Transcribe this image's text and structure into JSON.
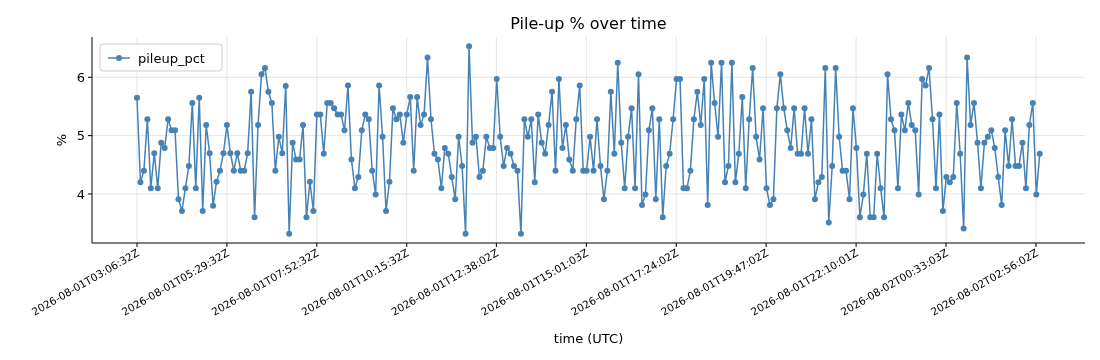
{
  "chart_data": {
    "type": "line",
    "title": "Pile-up % over time",
    "xlabel": "time (UTC)",
    "ylabel": "%",
    "x": [
      "2026-08-01T03:06:32",
      "2026-08-01T03:12:02",
      "2026-08-01T03:17:32",
      "2026-08-01T03:23:02",
      "2026-08-01T03:28:32",
      "2026-08-01T03:34:02",
      "2026-08-01T03:39:32",
      "2026-08-01T03:45:02",
      "2026-08-01T03:50:32",
      "2026-08-01T03:56:02",
      "2026-08-01T04:01:32",
      "2026-08-01T04:07:02",
      "2026-08-01T04:12:32",
      "2026-08-01T04:18:02",
      "2026-08-01T04:23:32",
      "2026-08-01T04:29:02",
      "2026-08-01T04:34:32",
      "2026-08-01T04:40:02",
      "2026-08-01T04:45:32",
      "2026-08-01T04:51:02",
      "2026-08-01T04:56:32",
      "2026-08-01T05:02:02",
      "2026-08-01T05:07:32",
      "2026-08-01T05:13:02",
      "2026-08-01T05:18:32",
      "2026-08-01T05:24:02",
      "2026-08-01T05:29:32",
      "2026-08-01T05:35:02",
      "2026-08-01T05:40:32",
      "2026-08-01T05:46:02",
      "2026-08-01T05:51:32",
      "2026-08-01T05:57:02",
      "2026-08-01T06:02:32",
      "2026-08-01T06:08:02",
      "2026-08-01T06:13:32",
      "2026-08-01T06:19:02",
      "2026-08-01T06:24:32",
      "2026-08-01T06:30:02",
      "2026-08-01T06:35:32",
      "2026-08-01T06:41:02",
      "2026-08-01T06:46:32",
      "2026-08-01T06:52:02",
      "2026-08-01T06:57:32",
      "2026-08-01T07:03:02",
      "2026-08-01T07:08:32",
      "2026-08-01T07:14:02",
      "2026-08-01T07:19:32",
      "2026-08-01T07:25:02",
      "2026-08-01T07:30:32",
      "2026-08-01T07:36:02",
      "2026-08-01T07:41:32",
      "2026-08-01T07:47:02",
      "2026-08-01T07:52:32",
      "2026-08-01T07:58:02",
      "2026-08-01T08:03:32",
      "2026-08-01T08:09:02",
      "2026-08-01T08:14:32",
      "2026-08-01T08:20:02",
      "2026-08-01T08:25:32",
      "2026-08-01T08:31:02",
      "2026-08-01T08:36:32",
      "2026-08-01T08:42:02",
      "2026-08-01T08:47:32",
      "2026-08-01T08:53:02",
      "2026-08-01T08:58:32",
      "2026-08-01T09:04:02",
      "2026-08-01T09:09:32",
      "2026-08-01T09:15:02",
      "2026-08-01T09:20:32",
      "2026-08-01T09:26:02",
      "2026-08-01T09:31:32",
      "2026-08-01T09:37:02",
      "2026-08-01T09:42:32",
      "2026-08-01T09:48:02",
      "2026-08-01T09:53:32",
      "2026-08-01T09:59:02",
      "2026-08-01T10:04:32",
      "2026-08-01T10:10:02",
      "2026-08-01T10:15:32",
      "2026-08-01T10:21:02",
      "2026-08-01T10:26:32",
      "2026-08-01T10:32:02",
      "2026-08-01T10:37:32",
      "2026-08-01T10:43:02",
      "2026-08-01T10:48:32",
      "2026-08-01T10:54:02",
      "2026-08-01T10:59:32",
      "2026-08-01T11:05:02",
      "2026-08-01T11:10:32",
      "2026-08-01T11:16:02",
      "2026-08-01T11:21:32",
      "2026-08-01T11:27:02",
      "2026-08-01T11:32:32",
      "2026-08-01T11:38:02",
      "2026-08-01T11:43:32",
      "2026-08-01T11:49:02",
      "2026-08-01T11:54:32",
      "2026-08-01T12:00:02",
      "2026-08-01T12:05:32",
      "2026-08-01T12:11:02",
      "2026-08-01T12:16:32",
      "2026-08-01T12:22:02",
      "2026-08-01T12:27:32",
      "2026-08-01T12:33:02",
      "2026-08-01T12:38:32",
      "2026-08-01T12:44:02",
      "2026-08-01T12:49:32",
      "2026-08-01T12:55:02",
      "2026-08-01T13:00:32",
      "2026-08-01T13:06:02",
      "2026-08-01T13:11:32",
      "2026-08-01T13:17:02",
      "2026-08-01T13:22:32",
      "2026-08-01T13:28:02",
      "2026-08-01T13:33:32",
      "2026-08-01T13:39:02",
      "2026-08-01T13:44:32",
      "2026-08-01T13:50:02",
      "2026-08-01T13:55:32",
      "2026-08-01T14:01:02",
      "2026-08-01T14:06:32",
      "2026-08-01T14:12:02",
      "2026-08-01T14:17:32",
      "2026-08-01T14:23:02",
      "2026-08-01T14:28:32",
      "2026-08-01T14:34:02",
      "2026-08-01T14:39:32",
      "2026-08-01T14:45:02",
      "2026-08-01T14:50:32",
      "2026-08-01T14:56:02",
      "2026-08-01T15:01:32",
      "2026-08-01T15:07:02",
      "2026-08-01T15:12:32",
      "2026-08-01T15:18:02",
      "2026-08-01T15:23:32",
      "2026-08-01T15:29:02",
      "2026-08-01T15:34:32",
      "2026-08-01T15:40:02",
      "2026-08-01T15:45:32",
      "2026-08-01T15:51:02",
      "2026-08-01T15:56:32",
      "2026-08-01T16:02:02",
      "2026-08-01T16:07:32",
      "2026-08-01T16:13:02",
      "2026-08-01T16:18:32",
      "2026-08-01T16:24:02",
      "2026-08-01T16:29:32",
      "2026-08-01T16:35:02",
      "2026-08-01T16:40:32",
      "2026-08-01T16:46:02",
      "2026-08-01T16:51:32",
      "2026-08-01T16:57:02",
      "2026-08-01T17:02:32",
      "2026-08-01T17:08:02",
      "2026-08-01T17:13:32",
      "2026-08-01T17:19:02",
      "2026-08-01T17:24:32",
      "2026-08-01T17:30:02",
      "2026-08-01T17:35:32",
      "2026-08-01T17:41:02",
      "2026-08-01T17:46:32",
      "2026-08-01T17:52:02",
      "2026-08-01T17:57:32",
      "2026-08-01T18:03:02",
      "2026-08-01T18:08:32",
      "2026-08-01T18:14:02",
      "2026-08-01T18:19:32",
      "2026-08-01T18:25:02",
      "2026-08-01T18:30:32",
      "2026-08-01T18:36:02",
      "2026-08-01T18:41:32",
      "2026-08-01T18:47:02",
      "2026-08-01T18:52:32",
      "2026-08-01T18:58:02",
      "2026-08-01T19:03:32",
      "2026-08-01T19:09:02",
      "2026-08-01T19:14:32",
      "2026-08-01T19:20:02",
      "2026-08-01T19:25:32",
      "2026-08-01T19:31:02",
      "2026-08-01T19:36:32",
      "2026-08-01T19:42:02",
      "2026-08-01T19:47:32",
      "2026-08-01T19:53:02",
      "2026-08-01T19:58:32",
      "2026-08-01T20:04:02",
      "2026-08-01T20:09:32",
      "2026-08-01T20:15:02",
      "2026-08-01T20:20:32",
      "2026-08-01T20:26:02",
      "2026-08-01T20:31:32",
      "2026-08-01T20:37:02",
      "2026-08-01T20:42:32",
      "2026-08-01T20:48:02",
      "2026-08-01T20:53:32",
      "2026-08-01T20:59:02",
      "2026-08-01T21:04:32",
      "2026-08-01T21:10:02",
      "2026-08-01T21:15:32",
      "2026-08-01T21:21:02",
      "2026-08-01T21:26:32",
      "2026-08-01T21:32:02",
      "2026-08-01T21:37:32",
      "2026-08-01T21:43:02",
      "2026-08-01T21:48:32",
      "2026-08-01T21:54:02",
      "2026-08-01T21:59:32",
      "2026-08-01T22:05:02",
      "2026-08-01T22:10:32",
      "2026-08-01T22:16:02",
      "2026-08-01T22:21:32",
      "2026-08-01T22:27:02",
      "2026-08-01T22:32:32",
      "2026-08-01T22:38:02",
      "2026-08-01T22:43:32",
      "2026-08-01T22:49:02",
      "2026-08-01T22:54:32",
      "2026-08-01T23:00:02",
      "2026-08-01T23:05:32",
      "2026-08-01T23:11:02",
      "2026-08-01T23:16:32",
      "2026-08-01T23:22:02",
      "2026-08-01T23:27:32",
      "2026-08-01T23:33:02",
      "2026-08-01T23:38:32",
      "2026-08-01T23:44:02",
      "2026-08-01T23:49:32",
      "2026-08-01T23:55:02",
      "2026-08-02T00:00:32",
      "2026-08-02T00:06:02",
      "2026-08-02T00:11:32",
      "2026-08-02T00:17:02",
      "2026-08-02T00:22:32",
      "2026-08-02T00:28:02",
      "2026-08-02T00:33:32",
      "2026-08-02T00:39:02",
      "2026-08-02T00:44:32",
      "2026-08-02T00:50:02",
      "2026-08-02T00:55:32",
      "2026-08-02T01:01:02",
      "2026-08-02T01:06:32",
      "2026-08-02T01:12:02",
      "2026-08-02T01:17:32",
      "2026-08-02T01:23:02",
      "2026-08-02T01:28:32",
      "2026-08-02T01:34:02",
      "2026-08-02T01:39:32",
      "2026-08-02T01:45:02",
      "2026-08-02T01:50:32",
      "2026-08-02T01:56:02",
      "2026-08-02T02:01:32",
      "2026-08-02T02:07:02",
      "2026-08-02T02:12:32",
      "2026-08-02T02:18:02",
      "2026-08-02T02:23:32",
      "2026-08-02T02:29:02",
      "2026-08-02T02:34:32",
      "2026-08-02T02:40:02",
      "2026-08-02T02:45:32",
      "2026-08-02T02:51:02",
      "2026-08-02T02:56:32",
      "2026-08-02T03:02:02"
    ],
    "series": [
      {
        "name": "pileup_pct",
        "color": "#4682b4",
        "values": [
          5.65,
          4.2,
          4.4,
          5.28,
          4.1,
          4.7,
          4.1,
          4.88,
          4.79,
          5.28,
          5.09,
          5.09,
          3.91,
          3.71,
          4.1,
          4.48,
          5.56,
          4.1,
          5.65,
          3.71,
          5.18,
          4.7,
          3.8,
          4.21,
          4.4,
          4.7,
          5.18,
          4.7,
          4.4,
          4.7,
          4.4,
          4.4,
          4.7,
          5.75,
          3.6,
          5.18,
          6.05,
          6.16,
          5.75,
          5.56,
          4.4,
          4.98,
          4.7,
          5.85,
          3.32,
          4.88,
          4.59,
          4.59,
          5.18,
          3.6,
          4.21,
          3.71,
          5.36,
          5.36,
          4.69,
          5.56,
          5.56,
          5.47,
          5.36,
          5.36,
          5.09,
          5.86,
          4.59,
          4.1,
          4.29,
          5.09,
          5.36,
          5.28,
          4.4,
          3.99,
          5.86,
          4.98,
          3.71,
          4.21,
          5.47,
          5.28,
          5.36,
          4.88,
          5.36,
          5.66,
          4.4,
          5.66,
          5.18,
          5.36,
          6.34,
          5.28,
          4.69,
          4.59,
          4.1,
          4.79,
          4.69,
          4.29,
          3.91,
          4.98,
          4.48,
          3.32,
          6.53,
          4.88,
          4.98,
          4.29,
          4.4,
          4.98,
          4.79,
          4.79,
          5.97,
          4.98,
          4.48,
          4.79,
          4.69,
          4.48,
          4.4,
          3.32,
          5.28,
          4.98,
          5.28,
          4.2,
          5.36,
          4.88,
          4.69,
          5.18,
          5.75,
          4.4,
          5.97,
          4.79,
          5.18,
          4.59,
          4.4,
          5.28,
          5.86,
          4.4,
          4.4,
          4.98,
          4.4,
          5.28,
          4.48,
          3.91,
          4.4,
          5.75,
          4.69,
          6.25,
          4.88,
          4.1,
          4.98,
          5.47,
          4.1,
          6.05,
          3.81,
          3.99,
          5.09,
          5.47,
          3.91,
          5.28,
          3.6,
          4.48,
          4.69,
          5.28,
          5.97,
          5.97,
          4.1,
          4.1,
          4.4,
          5.28,
          5.75,
          5.18,
          5.97,
          3.81,
          6.25,
          5.56,
          4.98,
          6.25,
          4.2,
          4.48,
          6.25,
          4.2,
          4.69,
          5.66,
          4.1,
          5.28,
          6.16,
          4.98,
          4.59,
          5.47,
          4.1,
          3.81,
          3.91,
          5.47,
          6.05,
          5.47,
          5.09,
          4.79,
          5.47,
          4.69,
          4.69,
          5.47,
          4.69,
          5.28,
          3.91,
          4.2,
          4.29,
          6.16,
          3.51,
          4.48,
          6.16,
          4.98,
          4.4,
          4.4,
          3.91,
          5.47,
          4.79,
          3.6,
          3.99,
          4.69,
          3.6,
          3.6,
          4.69,
          4.1,
          3.6,
          6.05,
          5.28,
          5.09,
          4.1,
          5.36,
          5.09,
          5.56,
          5.18,
          5.09,
          3.99,
          5.97,
          5.86,
          6.16,
          5.28,
          4.1,
          5.36,
          3.71,
          4.29,
          4.2,
          4.29,
          5.56,
          4.69,
          3.41,
          6.34,
          5.18,
          5.56,
          4.88,
          4.1,
          4.88,
          4.98,
          5.09,
          4.79,
          4.29,
          3.81,
          5.09,
          4.48,
          5.28,
          4.48,
          4.48,
          4.88,
          4.1,
          5.18,
          5.56,
          3.99,
          4.69
        ]
      }
    ],
    "xlim": [
      "2026-08-01T01:55:00",
      "2026-08-02T04:14:00"
    ],
    "xticks": [
      {
        "value": "2026-08-01T03:06:32",
        "label": "2026-08-01T03:06:32Z"
      },
      {
        "value": "2026-08-01T05:29:32",
        "label": "2026-08-01T05:29:32Z"
      },
      {
        "value": "2026-08-01T07:52:32",
        "label": "2026-08-01T07:52:32Z"
      },
      {
        "value": "2026-08-01T10:15:32",
        "label": "2026-08-01T10:15:32Z"
      },
      {
        "value": "2026-08-01T12:38:02",
        "label": "2026-08-01T12:38:02Z"
      },
      {
        "value": "2026-08-01T15:01:03",
        "label": "2026-08-01T15:01:03Z"
      },
      {
        "value": "2026-08-01T17:24:02",
        "label": "2026-08-01T17:24:02Z"
      },
      {
        "value": "2026-08-01T19:47:02",
        "label": "2026-08-01T19:47:02Z"
      },
      {
        "value": "2026-08-01T22:10:01",
        "label": "2026-08-01T22:10:01Z"
      },
      {
        "value": "2026-08-02T00:33:03",
        "label": "2026-08-02T00:33:03Z"
      },
      {
        "value": "2026-08-02T02:56:02",
        "label": "2026-08-02T02:56:02Z"
      }
    ],
    "ylim": [
      3.16,
      6.69
    ],
    "yticks": [
      4,
      5,
      6
    ],
    "grid": true,
    "legend": "top left",
    "marker": "circle",
    "line_style": "solid"
  }
}
